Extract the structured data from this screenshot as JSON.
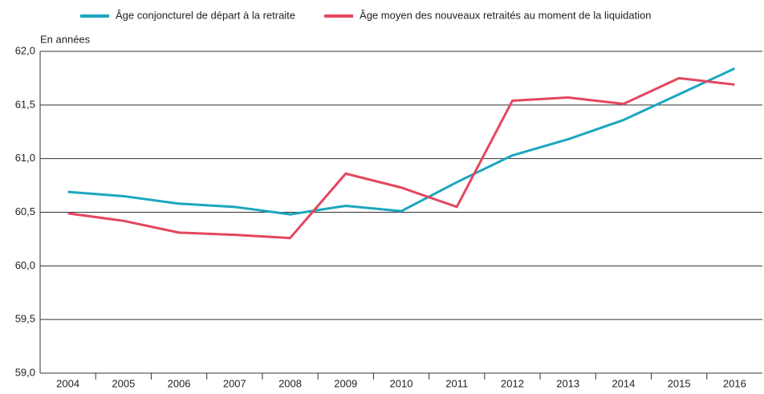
{
  "chart_data": {
    "type": "line",
    "y_label": "En années",
    "categories": [
      "2004",
      "2005",
      "2006",
      "2007",
      "2008",
      "2009",
      "2010",
      "2011",
      "2012",
      "2013",
      "2014",
      "2015",
      "2016"
    ],
    "series": [
      {
        "name": "Âge conjoncturel de départ à la retraite",
        "color": "#1ba6bf",
        "values": [
          60.69,
          60.65,
          60.58,
          60.55,
          60.48,
          60.56,
          60.51,
          60.78,
          61.03,
          61.18,
          61.36,
          61.6,
          61.84
        ]
      },
      {
        "name": "Âge moyen des nouveaux retraités au moment de la liquidation",
        "color": "#e4475f",
        "values": [
          60.49,
          60.42,
          60.31,
          60.29,
          60.26,
          60.86,
          60.73,
          60.55,
          61.54,
          61.57,
          61.51,
          61.75,
          61.69
        ]
      }
    ],
    "ylim": [
      59,
      62
    ],
    "yticks": [
      {
        "value": 59,
        "label": "59,0"
      },
      {
        "value": 59.5,
        "label": "59,5"
      },
      {
        "value": 60,
        "label": "60,0"
      },
      {
        "value": 60.5,
        "label": "60,5"
      },
      {
        "value": 61,
        "label": "61,0"
      },
      {
        "value": 61.5,
        "label": "61,5"
      },
      {
        "value": 62,
        "label": "62,0"
      }
    ],
    "grid": true,
    "legend": "top"
  }
}
